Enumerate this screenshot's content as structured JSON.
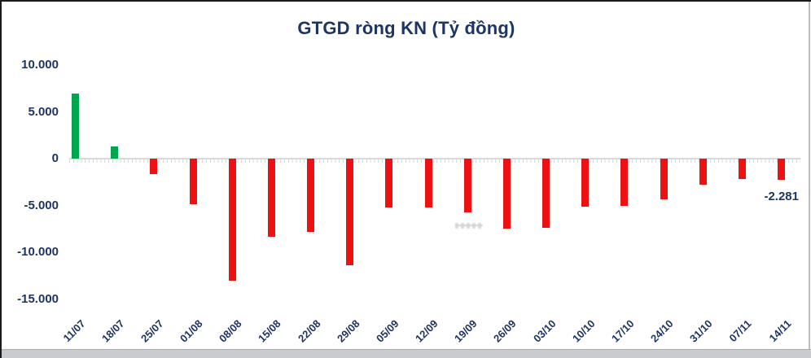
{
  "title": "GTGD ròng KN (Tỷ đồng)",
  "annotation": {
    "label": "-2.281",
    "attached_category": "14/11"
  },
  "colors": {
    "positive_bar": "#00A550",
    "negative_bar": "#EE1111",
    "text": "#1E3563",
    "axis": "#D9D9D9"
  },
  "y_axis": {
    "ticks": [
      {
        "value": 10000,
        "label": "10.000"
      },
      {
        "value": 5000,
        "label": "5.000"
      },
      {
        "value": 0,
        "label": "0"
      },
      {
        "value": -5000,
        "label": "-5.000"
      },
      {
        "value": -10000,
        "label": "-10.000"
      },
      {
        "value": -15000,
        "label": "-15.000"
      }
    ]
  },
  "chart_data": {
    "type": "bar",
    "title": "GTGD ròng KN (Tỷ đồng)",
    "xlabel": "",
    "ylabel": "",
    "ylim": [
      -15000,
      10000
    ],
    "grid": false,
    "legend": "none",
    "categories": [
      "11/07",
      "18/07",
      "25/07",
      "01/08",
      "08/08",
      "15/08",
      "22/08",
      "29/08",
      "05/09",
      "12/09",
      "19/09",
      "26/09",
      "03/10",
      "10/10",
      "17/10",
      "24/10",
      "31/10",
      "07/11",
      "14/11"
    ],
    "values": [
      7000,
      1300,
      -1650,
      -4870,
      -13050,
      -8350,
      -7830,
      -11400,
      -5220,
      -5260,
      -5740,
      -7480,
      -7400,
      -5130,
      -5050,
      -4350,
      -2780,
      -2170,
      -2281
    ],
    "data_labels": [
      {
        "category": "14/11",
        "label": "-2.281"
      }
    ],
    "color_rule": "positive bars green, negative bars red"
  }
}
